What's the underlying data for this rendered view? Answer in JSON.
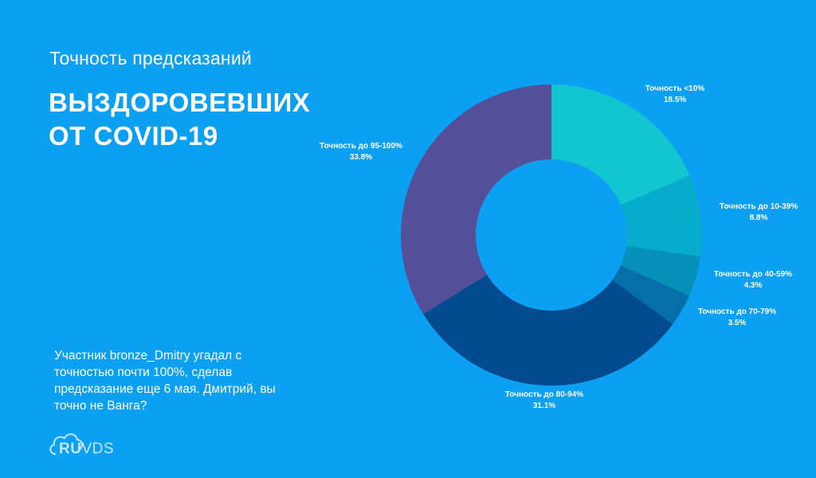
{
  "header": {
    "subtitle": "Точность предсказаний",
    "title_line1": "ВЫЗДОРОВЕВШИХ",
    "title_line2": "ОТ COVID-19"
  },
  "note": "Участник bronze_Dmitry угадал с точностью почти 100%, сделав предсказание еще 6 мая. Дмитрий, вы точно не Ванга?",
  "logo": {
    "ru": "RU",
    "vds": "VDS",
    "icon": "cloud-icon"
  },
  "chart_data": {
    "type": "pie",
    "donut": true,
    "slices": [
      {
        "label": "Точность <10%",
        "value": 18.5,
        "value_label": "18.5%",
        "color": "#12c6d1"
      },
      {
        "label": "Точность до 10-39%",
        "value": 8.8,
        "value_label": "8.8%",
        "color": "#06acc9"
      },
      {
        "label": "Точность до 40-59%",
        "value": 4.3,
        "value_label": "4.3%",
        "color": "#0790b8"
      },
      {
        "label": "Точность до 70-79%",
        "value": 3.5,
        "value_label": "3.5%",
        "color": "#066ea8"
      },
      {
        "label": "Точность до 80-94%",
        "value": 31.1,
        "value_label": "31.1%",
        "color": "#034b8f"
      },
      {
        "label": "Точность до 95-100%",
        "value": 33.8,
        "value_label": "33.8%",
        "color": "#534f99"
      }
    ]
  }
}
